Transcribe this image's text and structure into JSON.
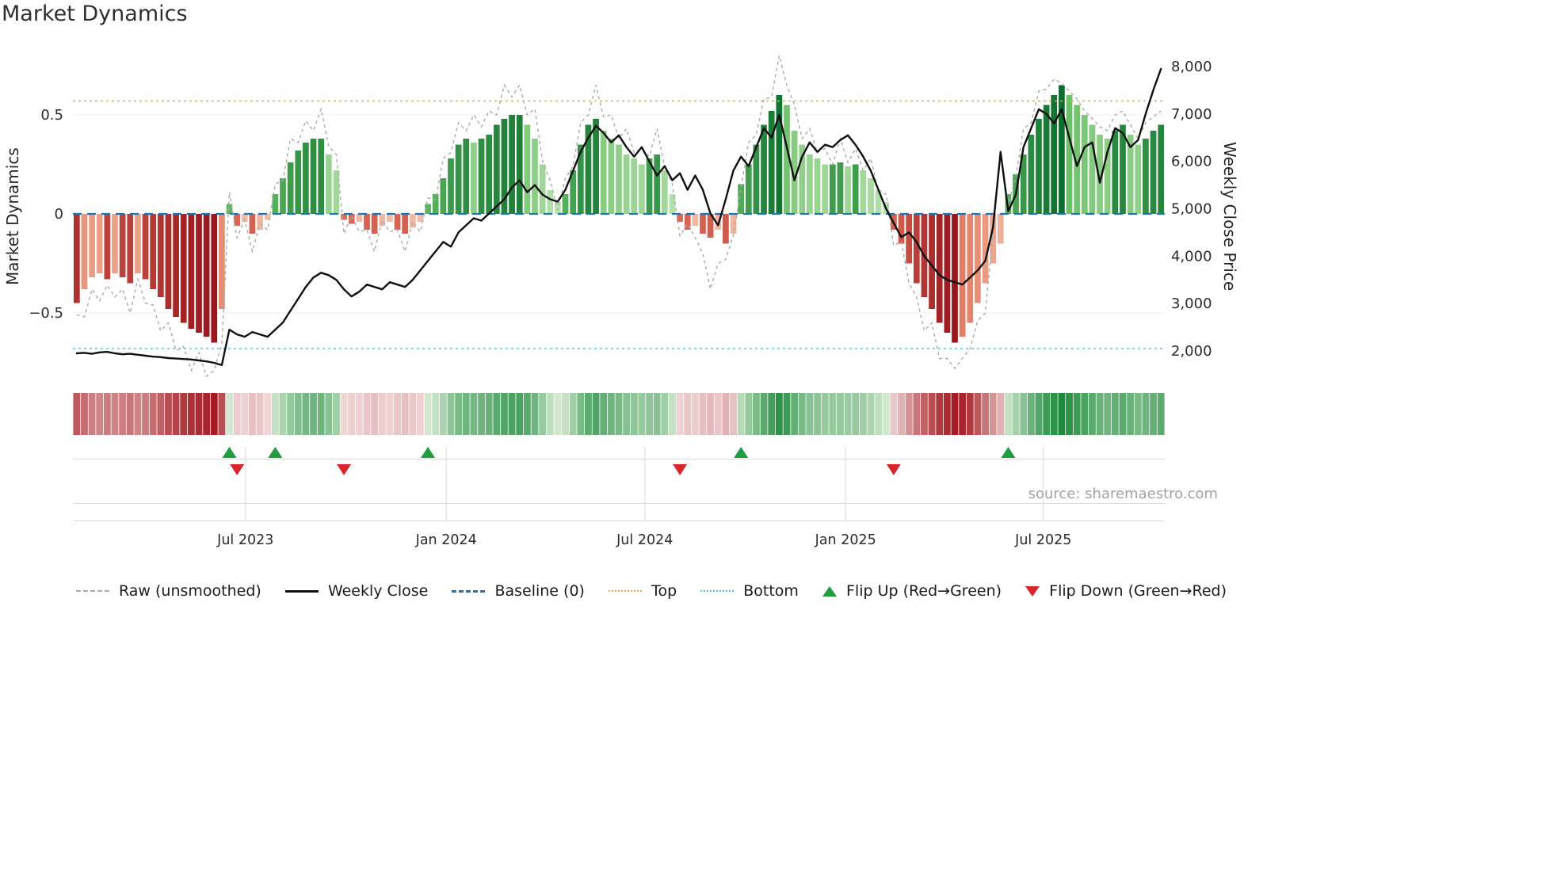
{
  "title": "Market Dynamics",
  "source": "source: sharemaestro.com",
  "axes": {
    "left_label": "Market Dynamics",
    "right_label": "Weekly Close Price",
    "left_ticks": [
      {
        "value": 0.5,
        "label": "0.5"
      },
      {
        "value": 0.0,
        "label": "0"
      },
      {
        "value": -0.5,
        "label": "−0.5"
      }
    ],
    "right_ticks": [
      {
        "value": 8000,
        "label": "8,000"
      },
      {
        "value": 7000,
        "label": "7,000"
      },
      {
        "value": 6000,
        "label": "6,000"
      },
      {
        "value": 5000,
        "label": "5,000"
      },
      {
        "value": 4000,
        "label": "4,000"
      },
      {
        "value": 3000,
        "label": "3,000"
      },
      {
        "value": 2000,
        "label": "2,000"
      }
    ],
    "x_ticks": [
      {
        "week": 22.1,
        "label": "Jul 2023"
      },
      {
        "week": 48.4,
        "label": "Jan 2024"
      },
      {
        "week": 74.4,
        "label": "Jul 2024"
      },
      {
        "week": 100.7,
        "label": "Jan 2025"
      },
      {
        "week": 126.6,
        "label": "Jul 2025"
      }
    ]
  },
  "legend": {
    "items": [
      {
        "label": "Raw (unsmoothed)",
        "marker": "dashed-gray-line"
      },
      {
        "label": "Weekly Close",
        "marker": "solid-black-line"
      },
      {
        "label": "Baseline (0)",
        "marker": "dashed-blue-line"
      },
      {
        "label": "Top",
        "marker": "dotted-orange-line"
      },
      {
        "label": "Bottom",
        "marker": "dotted-cyan-line"
      },
      {
        "label": "Flip Up (Red→Green)",
        "marker": "green-triangle-up"
      },
      {
        "label": "Flip Down (Green→Red)",
        "marker": "red-triangle-down"
      }
    ]
  },
  "colors": {
    "green_strong_lo": "#63bb63",
    "green_strong_hi": "#0b6e2d",
    "green_soft_lo": "#c2e6b8",
    "green_soft_hi": "#66bd63",
    "red_strong_lo": "#dd6f5a",
    "red_strong_hi": "#99161d",
    "red_soft_lo": "#f4bfa9",
    "red_soft_hi": "#e07b62",
    "heat_green_lo": "#e3f0dd",
    "heat_green_hi": "#1e8b3c",
    "heat_red_lo": "#f3dede",
    "heat_red_hi": "#a51c24",
    "raw_line": "#ababab",
    "close_line": "#111111",
    "baseline": "#2474b5",
    "top_line": "#f2a541",
    "bottom_line": "#54c5e8",
    "flip_up": "#1f9e3f",
    "flip_down": "#d8262b",
    "grid": "#efefef",
    "panel_grid": "#dcdcdc",
    "tick_text": "#2b2b2b"
  },
  "chart_data": {
    "type": "bar+line",
    "n_weeks": 143,
    "frequency": "weekly",
    "axis_ranges": {
      "left": [
        -0.86,
        0.832
      ],
      "right": [
        1298,
        8368
      ]
    },
    "reference_lines": {
      "baseline": 0,
      "top": 0.57,
      "bottom": -0.68
    },
    "flip_up_weeks": [
      20,
      26,
      46,
      87,
      122
    ],
    "flip_down_weeks": [
      21,
      35,
      79,
      107
    ],
    "series": {
      "dynamics_smoothed": {
        "name": "Market Dynamics (bars)",
        "axis": "left",
        "values": [
          -0.45,
          -0.38,
          -0.32,
          -0.3,
          -0.33,
          -0.3,
          -0.32,
          -0.35,
          -0.3,
          -0.33,
          -0.38,
          -0.42,
          -0.48,
          -0.52,
          -0.55,
          -0.58,
          -0.6,
          -0.62,
          -0.65,
          -0.48,
          0.05,
          -0.06,
          -0.04,
          -0.1,
          -0.08,
          -0.03,
          0.1,
          0.18,
          0.26,
          0.32,
          0.36,
          0.38,
          0.38,
          0.3,
          0.22,
          -0.03,
          -0.05,
          -0.04,
          -0.08,
          -0.1,
          -0.06,
          -0.04,
          -0.08,
          -0.1,
          -0.07,
          -0.04,
          0.05,
          0.1,
          0.18,
          0.28,
          0.35,
          0.38,
          0.36,
          0.38,
          0.4,
          0.45,
          0.48,
          0.5,
          0.5,
          0.45,
          0.38,
          0.25,
          0.12,
          0.06,
          0.1,
          0.22,
          0.35,
          0.45,
          0.48,
          0.42,
          0.38,
          0.35,
          0.3,
          0.28,
          0.25,
          0.28,
          0.3,
          0.22,
          0.1,
          -0.04,
          -0.08,
          -0.06,
          -0.1,
          -0.12,
          -0.08,
          -0.15,
          -0.1,
          0.15,
          0.25,
          0.35,
          0.45,
          0.52,
          0.6,
          0.55,
          0.42,
          0.35,
          0.3,
          0.28,
          0.25,
          0.25,
          0.26,
          0.24,
          0.25,
          0.22,
          0.18,
          0.12,
          0.06,
          -0.08,
          -0.15,
          -0.25,
          -0.35,
          -0.42,
          -0.48,
          -0.55,
          -0.6,
          -0.65,
          -0.62,
          -0.55,
          -0.45,
          -0.35,
          -0.25,
          -0.15,
          0.1,
          0.2,
          0.3,
          0.4,
          0.48,
          0.55,
          0.6,
          0.65,
          0.6,
          0.55,
          0.5,
          0.45,
          0.4,
          0.38,
          0.42,
          0.45,
          0.4,
          0.35,
          0.38,
          0.42,
          0.45
        ]
      },
      "raw": {
        "name": "Raw (unsmoothed)",
        "axis": "left",
        "values": [
          -0.51,
          -0.52,
          -0.38,
          -0.44,
          -0.36,
          -0.42,
          -0.38,
          -0.5,
          -0.33,
          -0.45,
          -0.46,
          -0.59,
          -0.55,
          -0.69,
          -0.67,
          -0.79,
          -0.7,
          -0.82,
          -0.79,
          -0.66,
          0.11,
          -0.12,
          -0.03,
          -0.19,
          -0.05,
          -0.08,
          0.15,
          0.17,
          0.38,
          0.36,
          0.47,
          0.42,
          0.53,
          0.34,
          0.3,
          -0.1,
          -0.01,
          -0.09,
          -0.08,
          -0.19,
          -0.03,
          -0.09,
          -0.08,
          -0.19,
          -0.04,
          -0.09,
          0.08,
          0.07,
          0.28,
          0.31,
          0.46,
          0.42,
          0.5,
          0.44,
          0.52,
          0.5,
          0.65,
          0.59,
          0.65,
          0.5,
          0.53,
          0.27,
          0.17,
          0.02,
          0.18,
          0.24,
          0.46,
          0.5,
          0.65,
          0.49,
          0.5,
          0.38,
          0.43,
          0.31,
          0.33,
          0.29,
          0.43,
          0.24,
          0.15,
          -0.11,
          -0.05,
          -0.12,
          -0.2,
          -0.38,
          -0.25,
          -0.23,
          -0.11,
          0.13,
          0.36,
          0.4,
          0.58,
          0.59,
          0.8,
          0.65,
          0.55,
          0.38,
          0.43,
          0.31,
          0.33,
          0.25,
          0.38,
          0.26,
          0.33,
          0.22,
          0.28,
          0.11,
          0.1,
          -0.16,
          -0.14,
          -0.35,
          -0.42,
          -0.59,
          -0.55,
          -0.73,
          -0.73,
          -0.78,
          -0.73,
          -0.68,
          -0.54,
          -0.5,
          -0.1,
          0.3,
          0.05,
          0.19,
          0.43,
          0.46,
          0.62,
          0.63,
          0.68,
          0.66,
          0.62,
          0.58,
          0.52,
          0.48,
          0.44,
          0.42,
          0.5,
          0.52,
          0.45,
          0.38,
          0.46,
          0.49,
          0.52
        ]
      },
      "weekly_close": {
        "name": "Weekly Close",
        "axis": "right",
        "values": [
          1950,
          1960,
          1940,
          1970,
          1980,
          1950,
          1930,
          1940,
          1920,
          1900,
          1880,
          1870,
          1850,
          1840,
          1830,
          1820,
          1800,
          1780,
          1750,
          1700,
          2450,
          2350,
          2300,
          2400,
          2350,
          2300,
          2450,
          2600,
          2850,
          3100,
          3350,
          3550,
          3650,
          3600,
          3500,
          3300,
          3150,
          3250,
          3400,
          3350,
          3300,
          3450,
          3400,
          3350,
          3500,
          3700,
          3900,
          4100,
          4300,
          4200,
          4500,
          4650,
          4800,
          4750,
          4900,
          5050,
          5200,
          5450,
          5600,
          5350,
          5500,
          5300,
          5200,
          5150,
          5400,
          5800,
          6200,
          6500,
          6750,
          6600,
          6400,
          6550,
          6300,
          6100,
          6300,
          6000,
          5700,
          5900,
          5600,
          5750,
          5400,
          5700,
          5400,
          4900,
          4650,
          5200,
          5800,
          6100,
          5900,
          6300,
          6700,
          6500,
          6980,
          6300,
          5600,
          6100,
          6400,
          6200,
          6350,
          6300,
          6450,
          6550,
          6350,
          6100,
          5800,
          5400,
          5000,
          4700,
          4400,
          4500,
          4300,
          4000,
          3800,
          3600,
          3500,
          3450,
          3400,
          3550,
          3700,
          3900,
          4600,
          6200,
          4950,
          5300,
          6300,
          6700,
          7100,
          7000,
          6800,
          7100,
          6500,
          5900,
          6300,
          6400,
          5550,
          6200,
          6700,
          6600,
          6300,
          6450,
          7000,
          7500,
          7950
        ]
      }
    }
  }
}
